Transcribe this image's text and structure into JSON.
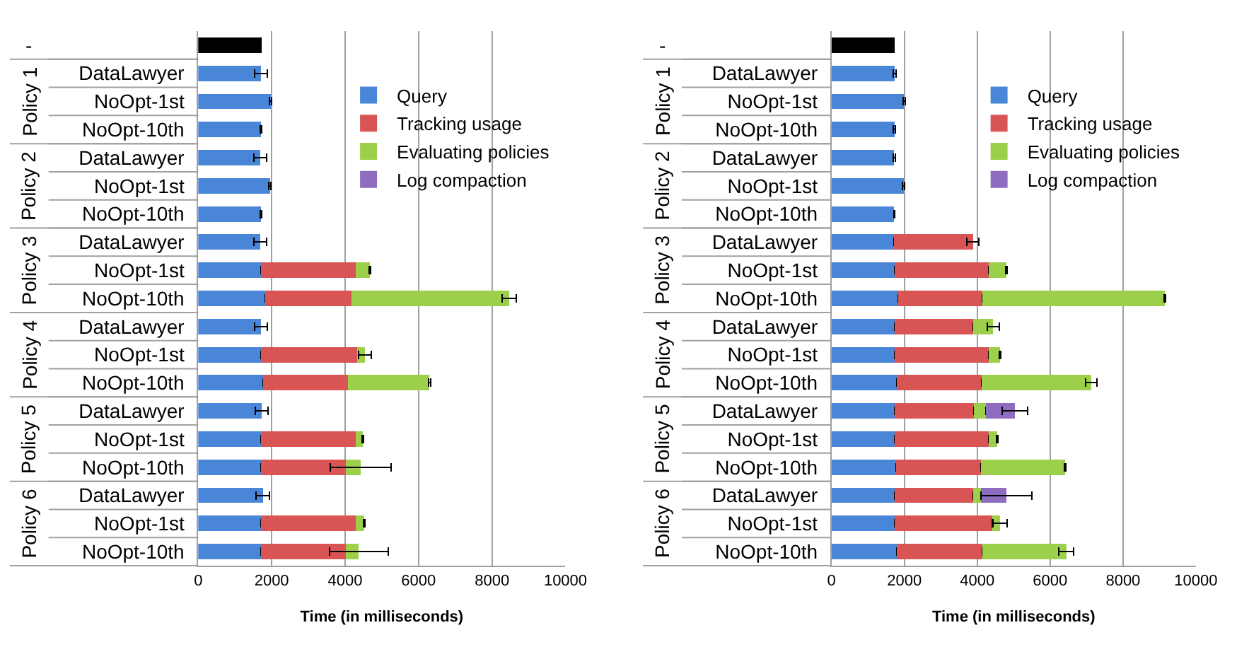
{
  "chart_data": [
    {
      "type": "bar",
      "orientation": "horizontal",
      "stacked": true,
      "xlabel": "Time (in milliseconds)",
      "xlim": [
        0,
        10000
      ],
      "xticks": [
        0,
        2000,
        4000,
        6000,
        8000,
        10000
      ],
      "grid": "x",
      "legend": "top right",
      "categories": [
        null,
        "DataLawyer",
        "NoOpt-1st",
        "NoOpt-10th",
        "DataLawyer",
        "NoOpt-1st",
        "NoOpt-10th",
        "DataLawyer",
        "NoOpt-1st",
        "NoOpt-10th",
        "DataLawyer",
        "NoOpt-1st",
        "NoOpt-10th",
        "DataLawyer",
        "NoOpt-1st",
        "NoOpt-10th",
        "DataLawyer",
        "NoOpt-1st",
        "NoOpt-10th"
      ],
      "annotations": [
        "-",
        "Policy 1",
        "Policy 2",
        "Policy 3",
        "Policy 4",
        "Policy 5",
        "Policy 6"
      ],
      "series": [
        {
          "color": "#000000",
          "values": [
            1730,
            null,
            null,
            null,
            null,
            null,
            null,
            null,
            null,
            null,
            null,
            null,
            null,
            null,
            null,
            null,
            null,
            null,
            null
          ]
        },
        {
          "name": "Query",
          "color": "#4a86d8",
          "values": [
            null,
            1710,
            1970,
            1710,
            1690,
            1950,
            1710,
            1690,
            1710,
            1820,
            1710,
            1710,
            1760,
            1730,
            1710,
            1710,
            1760,
            1710,
            1710
          ],
          "errors": [
            null,
            180,
            30,
            20,
            180,
            30,
            20,
            180,
            null,
            null,
            180,
            null,
            null,
            180,
            null,
            null,
            180,
            null,
            null
          ]
        },
        {
          "name": "Tracking usage",
          "color": "#d95555",
          "values": [
            null,
            null,
            null,
            null,
            null,
            null,
            null,
            null,
            2580,
            2350,
            null,
            2620,
            2310,
            null,
            2580,
            2310,
            null,
            2580,
            2310
          ]
        },
        {
          "name": "Evaluating policies",
          "color": "#9ccf4a",
          "values": [
            null,
            null,
            null,
            null,
            null,
            null,
            null,
            null,
            390,
            4300,
            null,
            210,
            2230,
            null,
            200,
            400,
            null,
            230,
            350
          ],
          "errors": [
            null,
            null,
            null,
            null,
            null,
            null,
            null,
            null,
            20,
            200,
            null,
            170,
            30,
            null,
            20,
            830,
            null,
            20,
            800
          ]
        },
        {
          "name": "Log compaction",
          "color": "#8e6cc0",
          "values": [
            null,
            null,
            null,
            null,
            null,
            null,
            null,
            null,
            null,
            null,
            null,
            null,
            null,
            null,
            null,
            null,
            null,
            null,
            null
          ]
        }
      ]
    },
    {
      "type": "bar",
      "orientation": "horizontal",
      "stacked": true,
      "xlabel": "Time (in milliseconds)",
      "xlim": [
        0,
        10000
      ],
      "xticks": [
        0,
        2000,
        4000,
        6000,
        8000,
        10000
      ],
      "grid": "x",
      "legend": "top right",
      "categories": [
        null,
        "DataLawyer",
        "NoOpt-1st",
        "NoOpt-10th",
        "DataLawyer",
        "NoOpt-1st",
        "NoOpt-10th",
        "DataLawyer",
        "NoOpt-1st",
        "NoOpt-10th",
        "DataLawyer",
        "NoOpt-1st",
        "NoOpt-10th",
        "DataLawyer",
        "NoOpt-1st",
        "NoOpt-10th",
        "DataLawyer",
        "NoOpt-1st",
        "NoOpt-10th"
      ],
      "annotations": [
        "-",
        "Policy 1",
        "Policy 2",
        "Policy 3",
        "Policy 4",
        "Policy 5",
        "Policy 6"
      ],
      "series": [
        {
          "color": "#000000",
          "values": [
            1740,
            null,
            null,
            null,
            null,
            null,
            null,
            null,
            null,
            null,
            null,
            null,
            null,
            null,
            null,
            null,
            null,
            null,
            null
          ]
        },
        {
          "name": "Query",
          "color": "#4a86d8",
          "values": [
            null,
            1730,
            1990,
            1730,
            1720,
            1980,
            1720,
            1720,
            1740,
            1830,
            1740,
            1730,
            1790,
            1740,
            1730,
            1770,
            1730,
            1730,
            1790
          ],
          "errors": [
            null,
            40,
            30,
            30,
            30,
            30,
            10,
            null,
            null,
            null,
            null,
            null,
            null,
            null,
            null,
            null,
            null,
            null,
            null
          ]
        },
        {
          "name": "Tracking usage",
          "color": "#d95555",
          "values": [
            null,
            null,
            null,
            null,
            null,
            null,
            null,
            2160,
            2580,
            2310,
            2140,
            2590,
            2340,
            2170,
            2590,
            2330,
            2160,
            2690,
            2350
          ],
          "errors": [
            null,
            null,
            null,
            null,
            null,
            null,
            null,
            160,
            null,
            null,
            null,
            null,
            null,
            null,
            null,
            null,
            null,
            null,
            null
          ]
        },
        {
          "name": "Evaluating policies",
          "color": "#9ccf4a",
          "values": [
            null,
            null,
            null,
            null,
            null,
            null,
            null,
            null,
            480,
            5010,
            560,
            300,
            3000,
            320,
            230,
            2310,
            210,
            200,
            2300
          ],
          "errors": [
            null,
            null,
            null,
            null,
            null,
            null,
            null,
            null,
            20,
            20,
            160,
            20,
            160,
            null,
            20,
            20,
            null,
            190,
            210
          ]
        },
        {
          "name": "Log compaction",
          "color": "#8e6cc0",
          "values": [
            null,
            null,
            null,
            null,
            null,
            null,
            null,
            null,
            null,
            null,
            null,
            null,
            null,
            800,
            null,
            null,
            700,
            null,
            null
          ],
          "errors": [
            null,
            null,
            null,
            null,
            null,
            null,
            null,
            null,
            null,
            null,
            null,
            null,
            null,
            350,
            null,
            null,
            700,
            null,
            null
          ]
        }
      ]
    }
  ]
}
